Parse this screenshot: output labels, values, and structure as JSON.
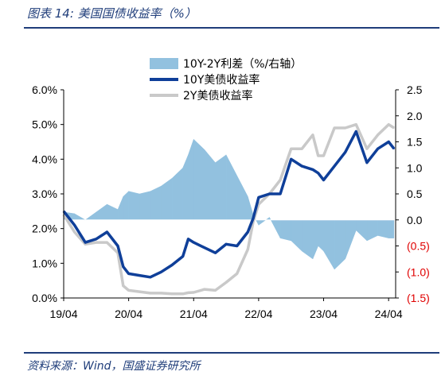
{
  "header": {
    "title": "图表 14:  美国国债收益率（%）"
  },
  "footer": {
    "source": "资料来源：Wind，国盛证券研究所"
  },
  "colors": {
    "spread": "#92c1df",
    "y10": "#0f3f99",
    "y2": "#c9c9c9",
    "neg_tick": "#e00000",
    "rule": "#1f3d7a"
  },
  "chart_data": {
    "type": "line",
    "title": "图表 14:  美国国债收益率（%）",
    "x_labels": [
      "19/04",
      "20/04",
      "21/04",
      "22/04",
      "23/04",
      "24/04"
    ],
    "left_axis": {
      "ylim": [
        0,
        6
      ],
      "ticks": [
        "0.0%",
        "1.0%",
        "2.0%",
        "3.0%",
        "4.0%",
        "5.0%",
        "6.0%"
      ]
    },
    "right_axis": {
      "ylim": [
        -1.5,
        2.5
      ],
      "ticks": [
        "(1.5)",
        "(1.0)",
        "(0.5)",
        "0.0",
        "0.5",
        "1.0",
        "1.5",
        "2.0",
        "2.5"
      ]
    },
    "legend_position": "top-center",
    "grid": false,
    "dates": [
      "2019-04",
      "2019-06",
      "2019-08",
      "2019-10",
      "2019-12",
      "2020-02",
      "2020-03",
      "2020-04",
      "2020-06",
      "2020-08",
      "2020-10",
      "2020-12",
      "2021-02",
      "2021-03",
      "2021-04",
      "2021-06",
      "2021-08",
      "2021-10",
      "2021-12",
      "2022-02",
      "2022-03",
      "2022-04",
      "2022-06",
      "2022-08",
      "2022-10",
      "2022-12",
      "2023-02",
      "2023-03",
      "2023-04",
      "2023-06",
      "2023-08",
      "2023-10",
      "2023-12",
      "2024-02",
      "2024-04",
      "2024-05"
    ],
    "series": [
      {
        "name": "10Y-2Y利差（%/右轴）",
        "axis": "right",
        "type": "area",
        "values": [
          0.15,
          0.12,
          0.0,
          0.15,
          0.3,
          0.2,
          0.45,
          0.55,
          0.5,
          0.55,
          0.65,
          0.8,
          1.0,
          1.25,
          1.55,
          1.35,
          1.1,
          1.25,
          0.85,
          0.45,
          0.1,
          -0.1,
          0.05,
          -0.35,
          -0.4,
          -0.6,
          -0.75,
          -0.5,
          -0.6,
          -0.95,
          -0.75,
          -0.2,
          -0.4,
          -0.3,
          -0.35,
          -0.35
        ]
      },
      {
        "name": "10Y美债收益率",
        "axis": "left",
        "type": "line",
        "values": [
          2.5,
          2.1,
          1.6,
          1.7,
          1.9,
          1.5,
          0.9,
          0.7,
          0.65,
          0.6,
          0.75,
          0.95,
          1.2,
          1.7,
          1.6,
          1.45,
          1.3,
          1.55,
          1.5,
          1.9,
          2.3,
          2.9,
          3.0,
          3.0,
          4.0,
          3.8,
          3.7,
          3.6,
          3.4,
          3.8,
          4.2,
          4.8,
          3.9,
          4.3,
          4.5,
          4.3
        ]
      },
      {
        "name": "2Y美债收益率",
        "axis": "left",
        "type": "line",
        "values": [
          2.4,
          1.9,
          1.55,
          1.6,
          1.6,
          1.3,
          0.35,
          0.22,
          0.18,
          0.14,
          0.14,
          0.12,
          0.12,
          0.15,
          0.16,
          0.25,
          0.22,
          0.45,
          0.7,
          1.4,
          2.2,
          2.7,
          3.0,
          3.4,
          4.3,
          4.3,
          4.7,
          4.1,
          4.1,
          4.9,
          4.9,
          5.0,
          4.3,
          4.7,
          5.0,
          4.9
        ]
      }
    ]
  }
}
